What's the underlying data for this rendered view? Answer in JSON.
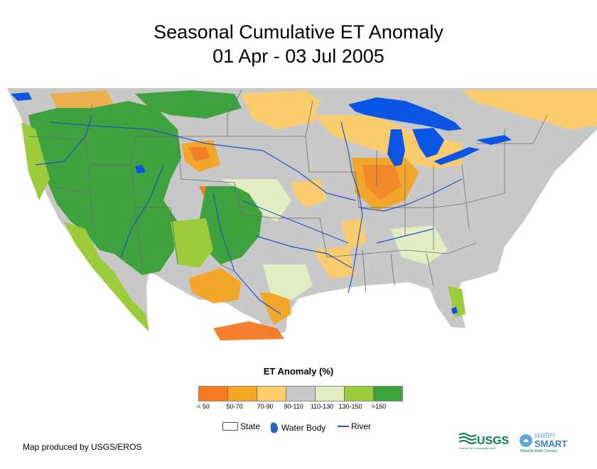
{
  "title": {
    "line1": "Seasonal Cumulative ET Anomaly",
    "line2": "01 Apr - 03 Jul 2005"
  },
  "map": {
    "description_icon": "us-et-anomaly-map",
    "colors": {
      "water": "#0a55e3",
      "river": "#2252c4",
      "state_line": "#6d6d6d",
      "land_normal": "#c8c8c8"
    }
  },
  "legend": {
    "title": "ET Anomaly (%)",
    "classes": [
      {
        "label": "< 50",
        "color": "#f57a22"
      },
      {
        "label": "50-70",
        "color": "#f5a623"
      },
      {
        "label": "70-90",
        "color": "#fecd6a"
      },
      {
        "label": "90-110",
        "color": "#c8c8c8"
      },
      {
        "label": "110-130",
        "color": "#e2edc3"
      },
      {
        "label": "130-150",
        "color": "#9ccb3c"
      },
      {
        "label": ">150",
        "color": "#3ea33e"
      }
    ]
  },
  "key": {
    "state": "State",
    "water_body": "Water Body",
    "river": "River"
  },
  "credit": "Map produced by USGS/EROS",
  "logos": {
    "usgs": "USGS",
    "usgs_tagline": "science for a changing world",
    "water": "water",
    "smart": "SMART",
    "ws_tagline": "National Water Census"
  }
}
